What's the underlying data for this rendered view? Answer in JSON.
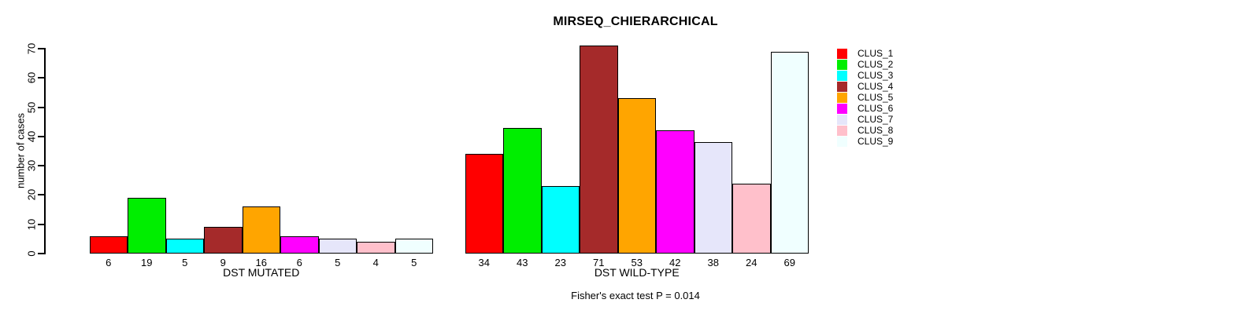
{
  "chart_data": {
    "type": "bar",
    "title": "MIRSEQ_CHIERARCHICAL",
    "ylabel": "number of cases",
    "xlabel": "",
    "ylim": [
      0,
      70
    ],
    "yticks": [
      0,
      10,
      20,
      30,
      40,
      50,
      60,
      70
    ],
    "grid": false,
    "legend_position": "right-outside",
    "footnote": "Fisher's exact test P = 0.014",
    "clusters": [
      {
        "label": "CLUS_1",
        "color": "#FF0000"
      },
      {
        "label": "CLUS_2",
        "color": "#00EE00"
      },
      {
        "label": "CLUS_3",
        "color": "#00FFFF"
      },
      {
        "label": "CLUS_4",
        "color": "#A52A2A"
      },
      {
        "label": "CLUS_5",
        "color": "#FFA500"
      },
      {
        "label": "CLUS_6",
        "color": "#FF00FF"
      },
      {
        "label": "CLUS_7",
        "color": "#E6E6FA"
      },
      {
        "label": "CLUS_8",
        "color": "#FFC0CB"
      },
      {
        "label": "CLUS_9",
        "color": "#F0FFFF"
      }
    ],
    "groups": [
      {
        "label": "DST MUTATED",
        "values": [
          6,
          19,
          5,
          9,
          16,
          6,
          5,
          4,
          5
        ]
      },
      {
        "label": "DST WILD-TYPE",
        "values": [
          34,
          43,
          23,
          71,
          53,
          42,
          38,
          24,
          69
        ]
      }
    ]
  }
}
